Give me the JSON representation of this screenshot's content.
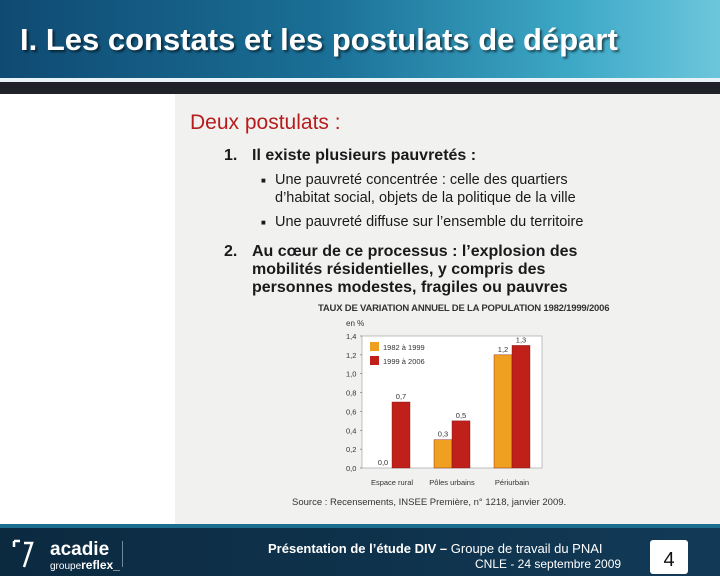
{
  "header": {
    "title": "I. Les constats et les postulats de départ"
  },
  "slide": {
    "subtitle": "Deux postulats :",
    "items": [
      {
        "num": "1.",
        "text": "Il existe plusieurs pauvretés :",
        "bullets": [
          "Une pauvreté concentrée : celle des quartiers",
          "d’habitat social, objets de la politique de la ville",
          "Une pauvreté diffuse sur l’ensemble du territoire"
        ]
      },
      {
        "num": "2.",
        "text_lines": [
          "Au cœur de ce processus : l’explosion des",
          "mobilités résidentielles, y compris des",
          "personnes modestes, fragiles ou pauvres"
        ]
      }
    ]
  },
  "chart_data": {
    "type": "bar",
    "title": "TAUX DE VARIATION ANNUEL DE LA POPULATION 1982/1999/2006",
    "ylabel": "en %",
    "ylim": [
      0,
      1.4
    ],
    "yticks": [
      "1,4",
      "1,2",
      "1,0",
      "0,8",
      "0,6",
      "0,4",
      "0,2",
      "0,0"
    ],
    "categories": [
      "Espace rural",
      "Pôles urbains",
      "Périurbain"
    ],
    "series": [
      {
        "name": "1982 à 1999",
        "values": [
          0.0,
          0.3,
          1.2
        ],
        "labels": [
          "0,0",
          "0,3",
          "1,2"
        ],
        "color": "#f0a020"
      },
      {
        "name": "1999 à 2006",
        "values": [
          0.7,
          0.5,
          1.3
        ],
        "labels": [
          "0,7",
          "0,5",
          "1,3"
        ],
        "color": "#c0201a"
      }
    ],
    "source": "Source : Recensements, INSEE Première, n° 1218, janvier 2009."
  },
  "footer": {
    "line1_bold": "Présentation de l’étude DIV –",
    "line1_rest": " Groupe de travail du PNAI",
    "line2": "CNLE  -  24 septembre 2009",
    "page": "4",
    "logo": {
      "name": "acadie",
      "sub_prefix": "groupe",
      "sub_main": "reflex_"
    }
  },
  "colors": {
    "header": "#1a6f96",
    "subtitle": "#b71c1c",
    "footer": "#0b2a40"
  }
}
